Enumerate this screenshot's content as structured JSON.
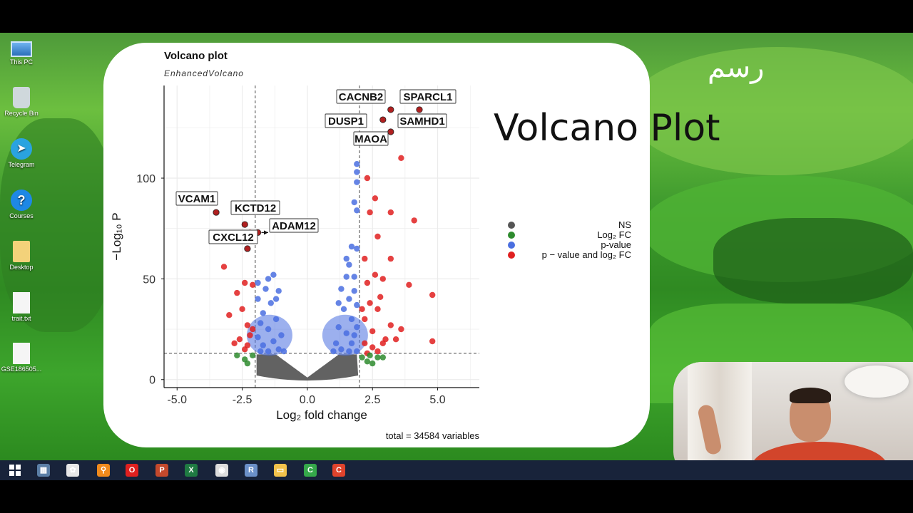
{
  "desktop_icons": [
    {
      "label": "This PC",
      "icon": "computer-icon"
    },
    {
      "label": "Recycle Bin",
      "icon": "recycle-bin-icon"
    },
    {
      "label": "Telegram",
      "icon": "telegram-icon",
      "glyph": "➤"
    },
    {
      "label": "Courses",
      "icon": "help-icon",
      "glyph": "?"
    },
    {
      "label": "Desktop",
      "icon": "folder-icon"
    },
    {
      "label": "trait.txt",
      "icon": "text-file-icon"
    },
    {
      "label": "GSE186505...",
      "icon": "file-icon"
    }
  ],
  "slide": {
    "title": "Volcano Plot",
    "arabic_title": "رسم"
  },
  "chart_data": {
    "type": "scatter",
    "title": "Volcano plot",
    "subtitle": "EnhancedVolcano",
    "xlabel": "Log₂ fold change",
    "ylabel": "−Log₁₀ P",
    "xlim": [
      -5.5,
      6.6
    ],
    "ylim": [
      -4,
      146
    ],
    "x_ticks": [
      "-5.0",
      "-2.5",
      "0.0",
      "2.5",
      "5.0"
    ],
    "x_tick_values": [
      -5,
      -2.5,
      0,
      2.5,
      5
    ],
    "y_ticks": [
      "0",
      "50",
      "100"
    ],
    "y_tick_values": [
      0,
      50,
      100
    ],
    "grid": true,
    "thresholds": {
      "fc_cutoff": 2.0,
      "p_cutoff_neglog10": 13
    },
    "caption": "total = 34584 variables",
    "legend_position": "right",
    "legend": [
      {
        "label": "NS",
        "color": "#555555"
      },
      {
        "label": "Log₂ FC",
        "color": "#2e8b2e"
      },
      {
        "label": "p-value",
        "color": "#4a6fe0"
      },
      {
        "label": "p − value and log₂ FC",
        "color": "#e02020"
      }
    ],
    "labeled_points": [
      {
        "gene": "CACNB2",
        "x": 3.2,
        "y": 134
      },
      {
        "gene": "SPARCL1",
        "x": 4.3,
        "y": 134
      },
      {
        "gene": "DUSP1",
        "x": 2.9,
        "y": 129
      },
      {
        "gene": "SAMHD1",
        "x": 3.6,
        "y": 128
      },
      {
        "gene": "MAOA",
        "x": 3.2,
        "y": 123
      },
      {
        "gene": "VCAM1",
        "x": -3.5,
        "y": 83
      },
      {
        "gene": "KCTD12",
        "x": -2.4,
        "y": 77
      },
      {
        "gene": "ADAM12",
        "x": -1.9,
        "y": 73
      },
      {
        "gene": "CXCL12",
        "x": -2.3,
        "y": 65
      }
    ],
    "series": [
      {
        "name": "p − value and log₂ FC",
        "color": "#e02020",
        "points": [
          [
            3.6,
            110
          ],
          [
            2.6,
            90
          ],
          [
            2.4,
            83
          ],
          [
            3.2,
            83
          ],
          [
            4.1,
            79
          ],
          [
            2.7,
            71
          ],
          [
            3.2,
            60
          ],
          [
            3.9,
            47
          ],
          [
            4.8,
            42
          ],
          [
            2.6,
            52
          ],
          [
            2.9,
            50
          ],
          [
            2.3,
            48
          ],
          [
            2.8,
            41
          ],
          [
            2.4,
            38
          ],
          [
            2.7,
            35
          ],
          [
            2.2,
            30
          ],
          [
            3.2,
            27
          ],
          [
            3.6,
            25
          ],
          [
            2.5,
            24
          ],
          [
            3.0,
            20
          ],
          [
            3.4,
            20
          ],
          [
            4.8,
            19
          ],
          [
            2.9,
            18
          ],
          [
            2.2,
            18
          ],
          [
            2.5,
            16
          ],
          [
            2.7,
            14
          ],
          [
            2.3,
            13
          ],
          [
            2.1,
            35
          ],
          [
            2.2,
            60
          ],
          [
            2.3,
            100
          ],
          [
            -2.2,
            73
          ],
          [
            -3.2,
            56
          ],
          [
            -2.4,
            48
          ],
          [
            -2.1,
            47
          ],
          [
            -2.7,
            43
          ],
          [
            -3.0,
            32
          ],
          [
            -2.5,
            35
          ],
          [
            -2.3,
            27
          ],
          [
            -2.2,
            22
          ],
          [
            -2.6,
            20
          ],
          [
            -2.8,
            18
          ],
          [
            -2.4,
            15
          ],
          [
            -2.1,
            25
          ],
          [
            -2.3,
            17
          ]
        ]
      },
      {
        "name": "Log₂ FC",
        "color": "#2e8b2e",
        "points": [
          [
            -2.7,
            12
          ],
          [
            -2.4,
            10
          ],
          [
            -2.3,
            8
          ],
          [
            -2.1,
            12
          ],
          [
            2.1,
            11
          ],
          [
            2.4,
            12
          ],
          [
            2.7,
            11
          ],
          [
            2.9,
            11
          ],
          [
            2.3,
            9
          ],
          [
            2.5,
            8
          ]
        ]
      },
      {
        "name": "p-value",
        "color": "#4a6fe0",
        "points": [
          [
            1.9,
            107
          ],
          [
            1.9,
            103
          ],
          [
            1.9,
            98
          ],
          [
            1.8,
            88
          ],
          [
            1.9,
            84
          ],
          [
            1.7,
            66
          ],
          [
            1.9,
            65
          ],
          [
            1.5,
            60
          ],
          [
            1.6,
            57
          ],
          [
            1.8,
            51
          ],
          [
            1.5,
            51
          ],
          [
            1.3,
            45
          ],
          [
            1.6,
            40
          ],
          [
            1.9,
            37
          ],
          [
            1.4,
            35
          ],
          [
            1.7,
            30
          ],
          [
            1.2,
            26
          ],
          [
            1.5,
            23
          ],
          [
            1.8,
            22
          ],
          [
            1.1,
            18
          ],
          [
            1.3,
            15
          ],
          [
            1.6,
            14
          ],
          [
            1.9,
            14
          ],
          [
            1.0,
            14
          ],
          [
            1.7,
            18
          ],
          [
            1.9,
            26
          ],
          [
            1.2,
            38
          ],
          [
            1.8,
            44
          ],
          [
            -1.3,
            52
          ],
          [
            -1.5,
            50
          ],
          [
            -1.6,
            45
          ],
          [
            -1.1,
            44
          ],
          [
            -1.9,
            40
          ],
          [
            -1.4,
            38
          ],
          [
            -1.7,
            33
          ],
          [
            -1.2,
            30
          ],
          [
            -1.8,
            28
          ],
          [
            -1.5,
            25
          ],
          [
            -1.0,
            22
          ],
          [
            -1.9,
            21
          ],
          [
            -1.3,
            19
          ],
          [
            -1.7,
            17
          ],
          [
            -1.1,
            15
          ],
          [
            -1.5,
            14
          ],
          [
            -1.8,
            14
          ],
          [
            -0.9,
            14
          ],
          [
            -1.9,
            48
          ],
          [
            -1.2,
            40
          ]
        ]
      }
    ]
  },
  "taskbar": {
    "items": [
      {
        "name": "calculator-taskbar-icon",
        "color": "#5b7fa6",
        "glyph": "▦"
      },
      {
        "name": "paint-taskbar-icon",
        "color": "#e7e7e7",
        "glyph": "✿"
      },
      {
        "name": "search-taskbar-icon",
        "color": "#f08a1c",
        "glyph": "⚲"
      },
      {
        "name": "opera-taskbar-icon",
        "color": "#e0201f",
        "glyph": "O"
      },
      {
        "name": "pdf-taskbar-icon",
        "color": "#c4492c",
        "glyph": "P"
      },
      {
        "name": "excel-taskbar-icon",
        "color": "#1f7a42",
        "glyph": "X"
      },
      {
        "name": "chrome-taskbar-icon",
        "color": "#ddd",
        "glyph": "◉"
      },
      {
        "name": "r-taskbar-icon",
        "color": "#6b90c8",
        "glyph": "R"
      },
      {
        "name": "explorer-taskbar-icon",
        "color": "#f2c24b",
        "glyph": "▭"
      },
      {
        "name": "camtasia-green-taskbar-icon",
        "color": "#35a84a",
        "glyph": "C"
      },
      {
        "name": "camtasia-red-taskbar-icon",
        "color": "#e0432c",
        "glyph": "C"
      }
    ]
  }
}
